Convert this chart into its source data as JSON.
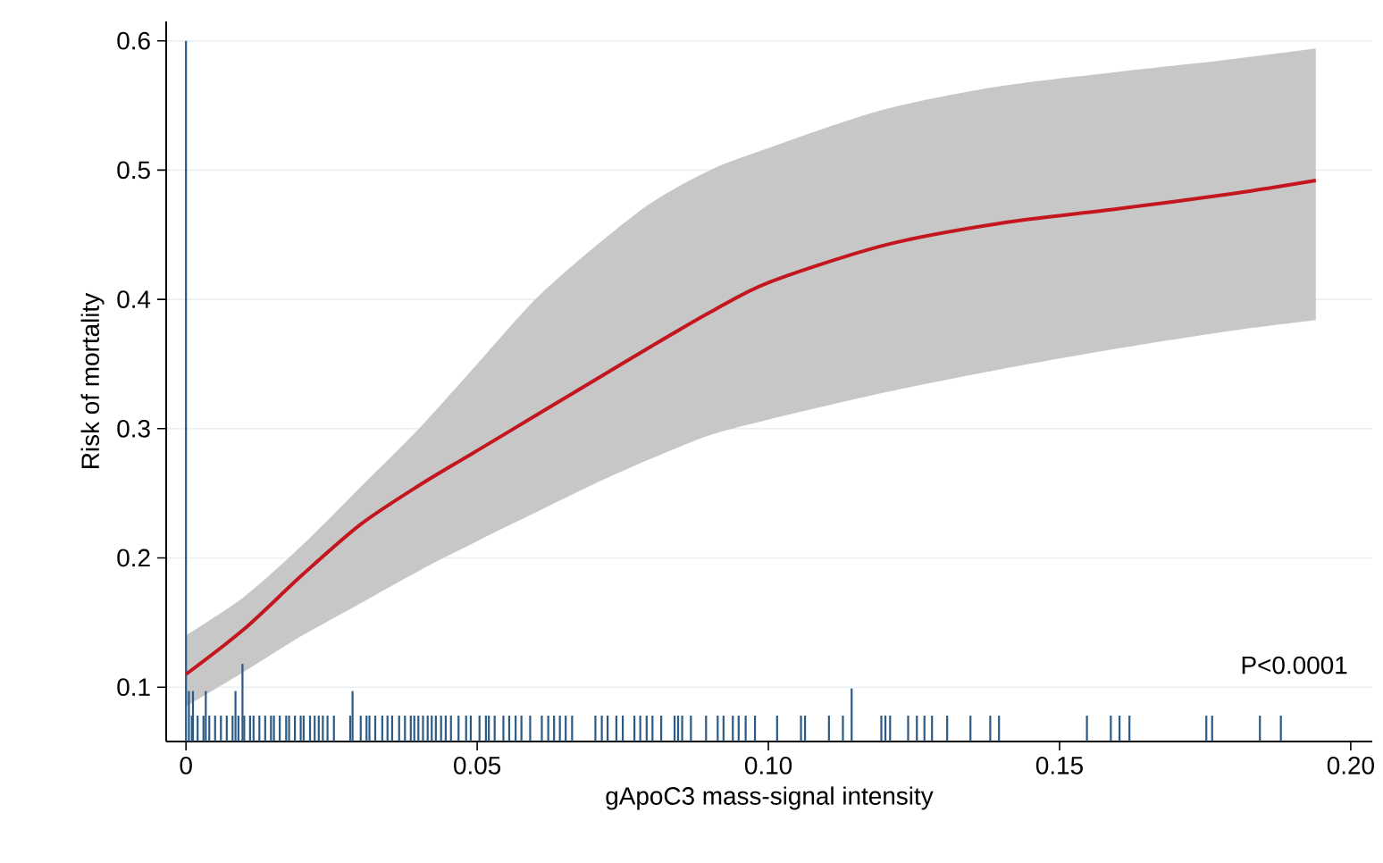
{
  "chart_data": {
    "type": "line",
    "xlabel": "gApoC3 mass-signal intensity",
    "ylabel": "Risk of mortality",
    "annotations": [
      "P<0.0001"
    ],
    "xlim": [
      -0.0034,
      0.2037
    ],
    "ylim": [
      0.058,
      0.615
    ],
    "xticks": [
      0,
      0.05,
      {
        "value": 0.1,
        "label": "0.10"
      },
      0.15,
      {
        "value": 0.2,
        "label": "0.20"
      }
    ],
    "yticks": [
      0.1,
      0.2,
      0.3,
      0.4,
      0.5,
      0.6
    ],
    "grid": "y",
    "series": [
      {
        "type": "bar",
        "color": "#2b5a84",
        "x": [
          0,
          0.0005,
          0.001,
          0.0012,
          0.002,
          0.003,
          0.0034,
          0.004,
          0.005,
          0.006,
          0.007,
          0.008,
          0.0085,
          0.009,
          0.0097,
          0.01,
          0.011,
          0.0116,
          0.0126,
          0.0136,
          0.0146,
          0.0151,
          0.0161,
          0.0172,
          0.0177,
          0.0187,
          0.0197,
          0.0202,
          0.0213,
          0.0221,
          0.0228,
          0.0235,
          0.0243,
          0.0254,
          0.0282,
          0.0286,
          0.03,
          0.031,
          0.0315,
          0.0325,
          0.0337,
          0.0346,
          0.0354,
          0.0366,
          0.0376,
          0.0386,
          0.0392,
          0.0399,
          0.0407,
          0.0415,
          0.0422,
          0.0429,
          0.0438,
          0.0446,
          0.0455,
          0.0468,
          0.0481,
          0.0489,
          0.0504,
          0.0515,
          0.052,
          0.053,
          0.0545,
          0.0555,
          0.0566,
          0.0576,
          0.0591,
          0.0611,
          0.0622,
          0.0632,
          0.0642,
          0.0652,
          0.0663,
          0.0703,
          0.0714,
          0.0724,
          0.0739,
          0.075,
          0.077,
          0.078,
          0.0791,
          0.0801,
          0.0816,
          0.0839,
          0.0845,
          0.0852,
          0.0867,
          0.0893,
          0.0913,
          0.0923,
          0.0939,
          0.0949,
          0.0961,
          0.0977,
          0.1015,
          0.1056,
          0.1063,
          0.1104,
          0.1128,
          0.1143,
          0.1194,
          0.1201,
          0.1209,
          0.124,
          0.1255,
          0.1268,
          0.1281,
          0.1307,
          0.1347,
          0.1381,
          0.1396,
          0.1547,
          0.1588,
          0.1603,
          0.162,
          0.1752,
          0.1762,
          0.1844,
          0.188
        ],
        "base": [
          0.058,
          0.058,
          0.058,
          0.058,
          0.058,
          0.058,
          0.058,
          0.058,
          0.058,
          0.058,
          0.058,
          0.058,
          0.058,
          0.058,
          0.058,
          0.058,
          0.058,
          0.058,
          0.058,
          0.058,
          0.058,
          0.058,
          0.058,
          0.058,
          0.058,
          0.058,
          0.058,
          0.058,
          0.058,
          0.058,
          0.058,
          0.058,
          0.058,
          0.058,
          0.058,
          0.058,
          0.058,
          0.058,
          0.058,
          0.058,
          0.058,
          0.058,
          0.058,
          0.058,
          0.058,
          0.058,
          0.058,
          0.058,
          0.058,
          0.058,
          0.058,
          0.058,
          0.058,
          0.058,
          0.058,
          0.058,
          0.058,
          0.058,
          0.058,
          0.058,
          0.058,
          0.058,
          0.058,
          0.058,
          0.058,
          0.058,
          0.058,
          0.058,
          0.058,
          0.058,
          0.058,
          0.058,
          0.058,
          0.058,
          0.058,
          0.058,
          0.058,
          0.058,
          0.058,
          0.058,
          0.058,
          0.058,
          0.058,
          0.058,
          0.058,
          0.058,
          0.058,
          0.058,
          0.058,
          0.058,
          0.058,
          0.058,
          0.058,
          0.058,
          0.058,
          0.058,
          0.058,
          0.058,
          0.058,
          0.058,
          0.058,
          0.058,
          0.058,
          0.058,
          0.058,
          0.058,
          0.058,
          0.058,
          0.058,
          0.058,
          0.058,
          0.058,
          0.058,
          0.058,
          0.058,
          0.058,
          0.058,
          0.058,
          0.058
        ],
        "values": [
          0.542,
          0.039,
          0.02,
          0.039,
          0.02,
          0.02,
          0.039,
          0.02,
          0.02,
          0.02,
          0.02,
          0.02,
          0.039,
          0.02,
          0.06,
          0.02,
          0.02,
          0.02,
          0.02,
          0.02,
          0.02,
          0.02,
          0.02,
          0.02,
          0.02,
          0.02,
          0.02,
          0.02,
          0.02,
          0.02,
          0.02,
          0.02,
          0.02,
          0.02,
          0.02,
          0.039,
          0.02,
          0.02,
          0.02,
          0.02,
          0.02,
          0.02,
          0.02,
          0.02,
          0.02,
          0.02,
          0.02,
          0.02,
          0.02,
          0.02,
          0.02,
          0.02,
          0.02,
          0.02,
          0.02,
          0.02,
          0.02,
          0.02,
          0.02,
          0.02,
          0.02,
          0.02,
          0.02,
          0.02,
          0.02,
          0.02,
          0.02,
          0.02,
          0.02,
          0.02,
          0.02,
          0.02,
          0.02,
          0.02,
          0.02,
          0.02,
          0.02,
          0.02,
          0.02,
          0.02,
          0.02,
          0.02,
          0.02,
          0.02,
          0.02,
          0.02,
          0.02,
          0.02,
          0.02,
          0.02,
          0.02,
          0.02,
          0.02,
          0.02,
          0.02,
          0.02,
          0.02,
          0.02,
          0.02,
          0.041,
          0.02,
          0.02,
          0.02,
          0.02,
          0.02,
          0.02,
          0.02,
          0.02,
          0.02,
          0.02,
          0.02,
          0.02,
          0.02,
          0.02,
          0.02,
          0.02,
          0.02,
          0.02,
          0.02
        ]
      },
      {
        "color": "#c3161f",
        "x": [
          0,
          0.01,
          0.02,
          0.03,
          0.04,
          0.05,
          0.06,
          0.07,
          0.08,
          0.09,
          0.1,
          0.12,
          0.14,
          0.16,
          0.18,
          0.194
        ],
        "values": [
          0.11,
          0.145,
          0.187,
          0.226,
          0.256,
          0.283,
          0.31,
          0.337,
          0.364,
          0.39,
          0.413,
          0.442,
          0.459,
          0.47,
          0.482,
          0.492
        ],
        "lower": [
          0.085,
          0.112,
          0.14,
          0.165,
          0.19,
          0.213,
          0.235,
          0.257,
          0.277,
          0.295,
          0.307,
          0.328,
          0.346,
          0.362,
          0.376,
          0.384
        ],
        "upper": [
          0.14,
          0.17,
          0.21,
          0.255,
          0.3,
          0.35,
          0.4,
          0.44,
          0.475,
          0.5,
          0.517,
          0.547,
          0.565,
          0.576,
          0.586,
          0.594
        ]
      }
    ]
  }
}
